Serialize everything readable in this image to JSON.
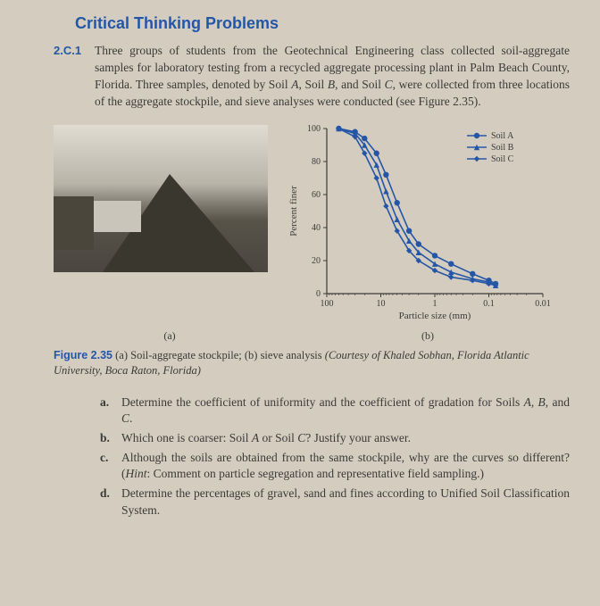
{
  "heading": "Critical Thinking Problems",
  "problem": {
    "number": "2.C.1",
    "text_pre": "Three groups of students from the Geotechnical Engineering class collected soil-aggregate samples for laboratory testing from a recycled aggregate processing plant in Palm Beach County, Florida. Three samples, denoted by Soil ",
    "soilsA": "A",
    "text_mid1": ", Soil ",
    "soilsB": "B",
    "text_mid2": ", and Soil ",
    "soilsC": "C",
    "text_post": ", were collected from three locations of the aggregate stockpile, and sieve analyses were conducted (see Figure 2.35)."
  },
  "chart": {
    "type": "line",
    "ylabel": "Percent finer",
    "xlabel": "Particle size (mm)",
    "ylim": [
      0,
      100
    ],
    "ytick_step": 20,
    "xscale": "log",
    "xlim": [
      100,
      0.01
    ],
    "xticks": [
      "100",
      "10",
      "1",
      "0.1",
      "0.01"
    ],
    "series": [
      {
        "name": "Soil A",
        "color": "#2456a8",
        "marker": "circle",
        "points": [
          [
            60,
            100
          ],
          [
            30,
            98
          ],
          [
            20,
            94
          ],
          [
            12,
            85
          ],
          [
            8,
            72
          ],
          [
            5,
            55
          ],
          [
            3,
            38
          ],
          [
            2,
            30
          ],
          [
            1,
            23
          ],
          [
            0.5,
            18
          ],
          [
            0.2,
            12
          ],
          [
            0.1,
            8
          ],
          [
            0.075,
            6
          ]
        ]
      },
      {
        "name": "Soil B",
        "color": "#2456a8",
        "marker": "triangle",
        "points": [
          [
            60,
            100
          ],
          [
            30,
            97
          ],
          [
            20,
            90
          ],
          [
            12,
            78
          ],
          [
            8,
            62
          ],
          [
            5,
            45
          ],
          [
            3,
            32
          ],
          [
            2,
            25
          ],
          [
            1,
            18
          ],
          [
            0.5,
            13
          ],
          [
            0.2,
            9
          ],
          [
            0.1,
            7
          ],
          [
            0.075,
            5
          ]
        ]
      },
      {
        "name": "Soil C",
        "color": "#2456a8",
        "marker": "diamond",
        "points": [
          [
            60,
            100
          ],
          [
            30,
            95
          ],
          [
            20,
            85
          ],
          [
            12,
            70
          ],
          [
            8,
            53
          ],
          [
            5,
            38
          ],
          [
            3,
            26
          ],
          [
            2,
            20
          ],
          [
            1,
            14
          ],
          [
            0.5,
            10
          ],
          [
            0.2,
            8
          ],
          [
            0.1,
            6
          ],
          [
            0.075,
            5
          ]
        ]
      }
    ],
    "background_color": "#d4cdbf",
    "axis_color": "#3a3a38",
    "line_width": 1.6,
    "marker_size": 3.2,
    "label_fontsize": 11,
    "tick_fontsize": 10
  },
  "sublabels": {
    "a": "(a)",
    "b": "(b)"
  },
  "caption": {
    "fignum": "Figure 2.35",
    "desc": " (a) Soil-aggregate stockpile; (b) sieve analysis ",
    "src": "(Courtesy of Khaled Sobhan, Florida Atlantic University, Boca Raton, Florida)"
  },
  "questions": [
    {
      "l": "a.",
      "t_pre": "Determine the coefficient of uniformity and the coefficient of gradation for Soils ",
      "i1": "A",
      "m1": ", ",
      "i2": "B",
      "m2": ", and ",
      "i3": "C",
      "t_post": "."
    },
    {
      "l": "b.",
      "t_pre": "Which one is coarser: Soil ",
      "i1": "A",
      "m1": " or Soil ",
      "i2": "C",
      "t_post": "?  Justify your answer."
    },
    {
      "l": "c.",
      "t_pre": "Although the soils are obtained from the same stockpile, why are the curves so different? (",
      "i1": "Hint",
      "t_post": ": Comment on particle segregation and representative field sampling.)"
    },
    {
      "l": "d.",
      "t_pre": "Determine the percentages of gravel, sand and fines according to Unified Soil Classification System."
    }
  ]
}
